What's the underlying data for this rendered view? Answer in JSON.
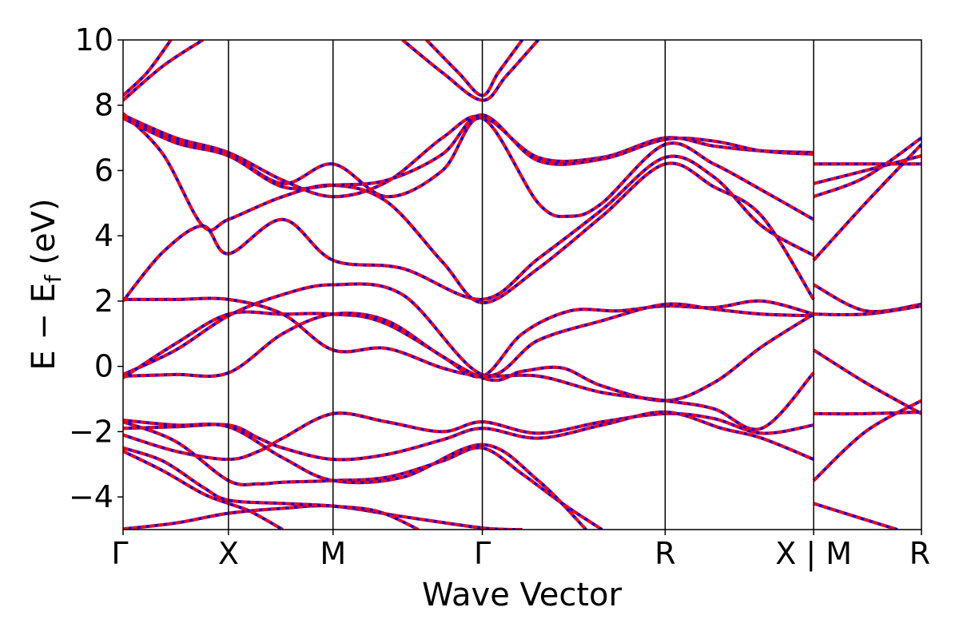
{
  "chart_data": {
    "type": "line",
    "title": "",
    "xlabel": "Wave Vector",
    "ylabel": "E − E_f (eV)",
    "ylabel_main": "E − E",
    "ylabel_sub": "f",
    "ylabel_tail": " (eV)",
    "ylim": [
      -5,
      10
    ],
    "yticks": [
      -4,
      -2,
      0,
      2,
      4,
      6,
      8,
      10
    ],
    "ytick_labels": [
      "−4",
      "−2",
      "0",
      "2",
      "4",
      "6",
      "8",
      "10"
    ],
    "xlim": [
      0,
      1
    ],
    "kpoints": [
      {
        "label": "Γ",
        "x": 0.0
      },
      {
        "label": "X",
        "x": 0.132
      },
      {
        "label": "M",
        "x": 0.263
      },
      {
        "label": "Γ",
        "x": 0.45
      },
      {
        "label": "R",
        "x": 0.679
      },
      {
        "label": "X | M",
        "x": 0.865
      },
      {
        "label": "R",
        "x": 1.0
      }
    ],
    "grid": false,
    "colors": {
      "band_primary": "#ff0000",
      "band_secondary": "#0000ff",
      "kline": "#000000"
    },
    "series": [
      {
        "values": [
          [
            0,
            -4.98
          ],
          [
            0.066,
            -4.8
          ],
          [
            0.132,
            -4.5
          ],
          [
            0.2,
            -4.35
          ],
          [
            0.263,
            -4.28
          ],
          [
            0.35,
            -4.6
          ],
          [
            0.45,
            -4.95
          ],
          [
            0.5,
            -5.0
          ]
        ]
      },
      {
        "values": [
          [
            0,
            -2.5
          ],
          [
            0.05,
            -2.9
          ],
          [
            0.1,
            -3.7
          ],
          [
            0.132,
            -4.1
          ],
          [
            0.2,
            -4.2
          ],
          [
            0.263,
            -4.28
          ],
          [
            0.32,
            -4.45
          ],
          [
            0.37,
            -5.0
          ]
        ]
      },
      {
        "values": [
          [
            0,
            -2.6
          ],
          [
            0.05,
            -3.2
          ],
          [
            0.1,
            -3.9
          ],
          [
            0.132,
            -4.2
          ],
          [
            0.16,
            -4.45
          ],
          [
            0.2,
            -5.0
          ]
        ]
      },
      {
        "values": [
          [
            0,
            -2.1
          ],
          [
            0.066,
            -2.6
          ],
          [
            0.132,
            -2.85
          ],
          [
            0.17,
            -2.6
          ],
          [
            0.2,
            -2.2
          ],
          [
            0.263,
            -1.45
          ],
          [
            0.33,
            -1.7
          ],
          [
            0.4,
            -2.0
          ],
          [
            0.45,
            -1.7
          ],
          [
            0.52,
            -2.05
          ],
          [
            0.6,
            -1.7
          ],
          [
            0.679,
            -1.45
          ],
          [
            0.74,
            -1.6
          ],
          [
            0.8,
            -2.05
          ],
          [
            0.865,
            -1.8
          ]
        ]
      },
      {
        "values": [
          [
            0,
            -1.9
          ],
          [
            0.066,
            -1.85
          ],
          [
            0.132,
            -1.8
          ],
          [
            0.17,
            -2.2
          ],
          [
            0.2,
            -2.5
          ],
          [
            0.263,
            -2.85
          ],
          [
            0.33,
            -2.7
          ],
          [
            0.4,
            -2.25
          ],
          [
            0.45,
            -1.9
          ],
          [
            0.52,
            -2.2
          ],
          [
            0.6,
            -1.8
          ],
          [
            0.679,
            -1.4
          ],
          [
            0.75,
            -1.9
          ],
          [
            0.8,
            -2.2
          ],
          [
            0.865,
            -2.85
          ]
        ]
      },
      {
        "values": [
          [
            0,
            -1.7
          ],
          [
            0.066,
            -2.3
          ],
          [
            0.132,
            -3.5
          ],
          [
            0.17,
            -3.6
          ],
          [
            0.2,
            -3.55
          ],
          [
            0.263,
            -3.5
          ],
          [
            0.33,
            -3.4
          ],
          [
            0.4,
            -2.9
          ],
          [
            0.45,
            -2.5
          ],
          [
            0.5,
            -3.3
          ],
          [
            0.55,
            -4.2
          ],
          [
            0.6,
            -5.0
          ]
        ]
      },
      {
        "values": [
          [
            0,
            -1.65
          ],
          [
            0.066,
            -1.8
          ],
          [
            0.132,
            -1.85
          ],
          [
            0.2,
            -2.8
          ],
          [
            0.263,
            -3.5
          ],
          [
            0.35,
            -3.4
          ],
          [
            0.45,
            -2.4
          ],
          [
            0.52,
            -3.5
          ],
          [
            0.58,
            -5.0
          ]
        ]
      },
      {
        "values": [
          [
            0,
            -0.3
          ],
          [
            0.066,
            -0.25
          ],
          [
            0.132,
            -0.2
          ],
          [
            0.2,
            1.0
          ],
          [
            0.263,
            1.6
          ],
          [
            0.33,
            1.4
          ],
          [
            0.4,
            0.3
          ],
          [
            0.45,
            -0.3
          ],
          [
            0.5,
            1.0
          ],
          [
            0.56,
            1.7
          ],
          [
            0.62,
            1.7
          ],
          [
            0.679,
            1.85
          ],
          [
            0.74,
            1.8
          ],
          [
            0.8,
            2.0
          ],
          [
            0.865,
            1.6
          ]
        ]
      },
      {
        "values": [
          [
            0,
            -0.25
          ],
          [
            0.066,
            0.5
          ],
          [
            0.132,
            1.55
          ],
          [
            0.2,
            2.2
          ],
          [
            0.263,
            2.5
          ],
          [
            0.35,
            2.2
          ],
          [
            0.45,
            -0.25
          ],
          [
            0.52,
            0.8
          ],
          [
            0.6,
            1.4
          ],
          [
            0.679,
            1.9
          ],
          [
            0.74,
            1.75
          ],
          [
            0.8,
            1.6
          ],
          [
            0.865,
            1.55
          ]
        ]
      },
      {
        "values": [
          [
            0,
            -0.35
          ],
          [
            0.066,
            0.7
          ],
          [
            0.132,
            1.6
          ],
          [
            0.2,
            1.6
          ],
          [
            0.263,
            1.6
          ],
          [
            0.33,
            1.3
          ],
          [
            0.45,
            -0.35
          ],
          [
            0.5,
            -0.15
          ],
          [
            0.55,
            -0.05
          ],
          [
            0.6,
            -0.6
          ],
          [
            0.679,
            -1.05
          ],
          [
            0.74,
            -0.5
          ],
          [
            0.8,
            0.6
          ],
          [
            0.865,
            1.6
          ]
        ]
      },
      {
        "values": [
          [
            0,
            2.05
          ],
          [
            0.066,
            2.05
          ],
          [
            0.132,
            2.05
          ],
          [
            0.2,
            1.6
          ],
          [
            0.263,
            0.5
          ],
          [
            0.33,
            0.55
          ],
          [
            0.4,
            -0.05
          ],
          [
            0.45,
            -0.3
          ],
          [
            0.52,
            -0.3
          ],
          [
            0.6,
            -0.8
          ],
          [
            0.679,
            -1.05
          ],
          [
            0.74,
            -1.3
          ],
          [
            0.8,
            -1.9
          ],
          [
            0.865,
            -0.2
          ]
        ]
      },
      {
        "values": [
          [
            0,
            2.0
          ],
          [
            0.05,
            3.5
          ],
          [
            0.1,
            4.3
          ],
          [
            0.132,
            3.45
          ],
          [
            0.2,
            4.5
          ],
          [
            0.263,
            3.25
          ],
          [
            0.35,
            3.0
          ],
          [
            0.45,
            2.05
          ],
          [
            0.52,
            3.3
          ],
          [
            0.6,
            4.8
          ],
          [
            0.679,
            6.4
          ],
          [
            0.74,
            5.8
          ],
          [
            0.8,
            4.3
          ],
          [
            0.865,
            3.4
          ]
        ]
      },
      {
        "values": [
          [
            0,
            7.75
          ],
          [
            0.05,
            6.5
          ],
          [
            0.1,
            4.3
          ],
          [
            0.132,
            4.5
          ],
          [
            0.2,
            5.2
          ],
          [
            0.263,
            5.55
          ],
          [
            0.33,
            5.05
          ],
          [
            0.4,
            3.2
          ],
          [
            0.45,
            1.95
          ],
          [
            0.52,
            3.0
          ],
          [
            0.6,
            4.6
          ],
          [
            0.679,
            6.2
          ],
          [
            0.74,
            5.5
          ],
          [
            0.8,
            4.6
          ],
          [
            0.865,
            2.05
          ]
        ]
      },
      {
        "values": [
          [
            0,
            7.7
          ],
          [
            0.066,
            7.0
          ],
          [
            0.132,
            6.55
          ],
          [
            0.2,
            5.7
          ],
          [
            0.263,
            5.2
          ],
          [
            0.33,
            5.65
          ],
          [
            0.4,
            7.0
          ],
          [
            0.45,
            7.65
          ],
          [
            0.52,
            6.4
          ],
          [
            0.6,
            6.4
          ],
          [
            0.679,
            7.0
          ],
          [
            0.74,
            6.75
          ],
          [
            0.8,
            6.6
          ],
          [
            0.865,
            6.55
          ]
        ]
      },
      {
        "values": [
          [
            0,
            7.65
          ],
          [
            0.066,
            6.9
          ],
          [
            0.132,
            6.5
          ],
          [
            0.2,
            5.6
          ],
          [
            0.263,
            6.2
          ],
          [
            0.33,
            5.2
          ],
          [
            0.4,
            6.0
          ],
          [
            0.45,
            7.6
          ],
          [
            0.52,
            5.0
          ],
          [
            0.56,
            4.6
          ],
          [
            0.6,
            5.0
          ],
          [
            0.679,
            6.8
          ],
          [
            0.74,
            6.2
          ],
          [
            0.8,
            5.4
          ],
          [
            0.865,
            4.5
          ]
        ]
      },
      {
        "values": [
          [
            0,
            7.6
          ],
          [
            0.066,
            6.85
          ],
          [
            0.132,
            6.45
          ],
          [
            0.2,
            5.5
          ],
          [
            0.263,
            5.55
          ],
          [
            0.33,
            5.7
          ],
          [
            0.4,
            6.5
          ],
          [
            0.45,
            7.7
          ],
          [
            0.52,
            6.3
          ],
          [
            0.6,
            6.35
          ],
          [
            0.679,
            6.95
          ],
          [
            0.74,
            6.9
          ],
          [
            0.8,
            6.6
          ],
          [
            0.865,
            6.5
          ]
        ]
      },
      {
        "values": [
          [
            0,
            8.15
          ],
          [
            0.05,
            9.2
          ],
          [
            0.1,
            10.0
          ]
        ]
      },
      {
        "values": [
          [
            0,
            8.3
          ],
          [
            0.03,
            9.0
          ],
          [
            0.06,
            10.0
          ]
        ]
      },
      {
        "values": [
          [
            0.35,
            10.0
          ],
          [
            0.4,
            9.0
          ],
          [
            0.45,
            8.15
          ],
          [
            0.48,
            8.9
          ],
          [
            0.52,
            10.0
          ]
        ]
      },
      {
        "values": [
          [
            0.38,
            10.0
          ],
          [
            0.42,
            9.0
          ],
          [
            0.45,
            8.3
          ],
          [
            0.47,
            9.0
          ],
          [
            0.5,
            10.0
          ]
        ]
      },
      {
        "values": [
          [
            0.865,
            6.2
          ],
          [
            0.93,
            6.2
          ],
          [
            1.0,
            6.2
          ]
        ]
      },
      {
        "values": [
          [
            0.865,
            5.6
          ],
          [
            0.93,
            6.0
          ],
          [
            1.0,
            6.45
          ]
        ]
      },
      {
        "values": [
          [
            0.865,
            5.2
          ],
          [
            0.93,
            5.8
          ],
          [
            1.0,
            7.0
          ]
        ]
      },
      {
        "values": [
          [
            0.865,
            3.25
          ],
          [
            0.93,
            5.0
          ],
          [
            1.0,
            6.8
          ]
        ]
      },
      {
        "values": [
          [
            0.865,
            2.5
          ],
          [
            0.93,
            1.7
          ],
          [
            1.0,
            1.9
          ]
        ]
      },
      {
        "values": [
          [
            0.865,
            1.6
          ],
          [
            0.93,
            1.6
          ],
          [
            1.0,
            1.85
          ]
        ]
      },
      {
        "values": [
          [
            0.865,
            0.5
          ],
          [
            0.93,
            -0.5
          ],
          [
            1.0,
            -1.45
          ]
        ]
      },
      {
        "values": [
          [
            0.865,
            -1.45
          ],
          [
            0.93,
            -1.45
          ],
          [
            1.0,
            -1.4
          ]
        ]
      },
      {
        "values": [
          [
            0.865,
            -3.5
          ],
          [
            0.93,
            -2.0
          ],
          [
            1.0,
            -1.05
          ]
        ]
      },
      {
        "values": [
          [
            0.865,
            -4.2
          ],
          [
            0.93,
            -4.7
          ],
          [
            0.97,
            -5.0
          ]
        ]
      }
    ]
  }
}
